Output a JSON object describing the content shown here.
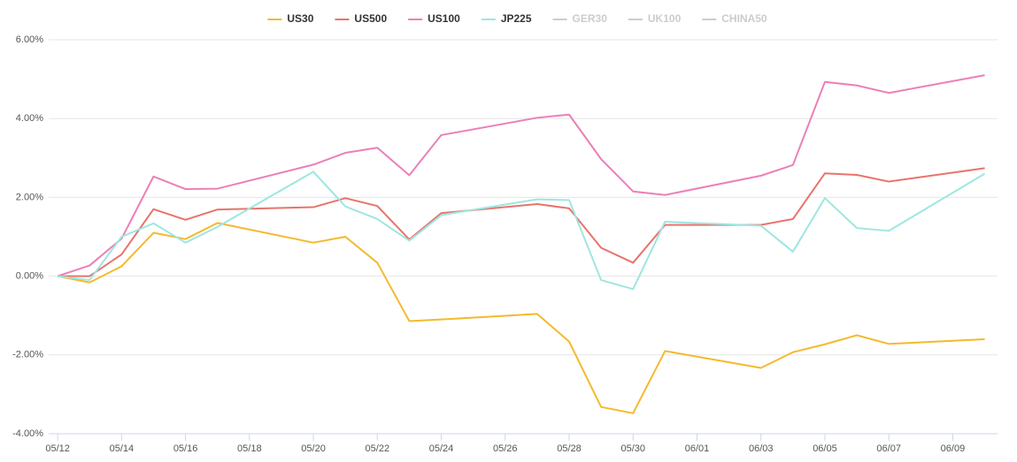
{
  "chart_data": {
    "type": "line",
    "x": [
      0,
      1,
      2,
      3,
      4,
      5,
      8,
      9,
      10,
      11,
      12,
      15,
      16,
      17,
      18,
      19,
      22,
      23,
      24,
      25,
      26,
      29
    ],
    "series": [
      {
        "name": "US30",
        "color": "#f4b92d",
        "values": [
          0,
          -0.16,
          0.25,
          1.1,
          0.94,
          1.35,
          0.85,
          1.0,
          0.34,
          -1.14,
          -1.1,
          -0.96,
          -1.66,
          -3.32,
          -3.48,
          -1.9,
          -2.33,
          -1.93,
          -1.73,
          -1.5,
          -1.72,
          -1.6
        ]
      },
      {
        "name": "US500",
        "color": "#e8736c",
        "values": [
          0,
          0.0,
          0.55,
          1.7,
          1.43,
          1.69,
          1.75,
          1.98,
          1.78,
          0.93,
          1.6,
          1.83,
          1.72,
          0.72,
          0.34,
          1.3,
          1.3,
          1.45,
          2.61,
          2.57,
          2.4,
          2.74
        ]
      },
      {
        "name": "US100",
        "color": "#ec7fb8",
        "values": [
          0,
          0.27,
          0.95,
          2.53,
          2.21,
          2.22,
          2.83,
          3.13,
          3.26,
          2.56,
          3.58,
          4.02,
          4.1,
          2.97,
          2.15,
          2.06,
          2.55,
          2.82,
          4.93,
          4.84,
          4.65,
          5.1
        ]
      },
      {
        "name": "JP225",
        "color": "#9ee6e0",
        "values": [
          0,
          -0.1,
          1.0,
          1.34,
          0.85,
          1.25,
          2.65,
          1.77,
          1.45,
          0.9,
          1.55,
          1.95,
          1.93,
          -0.1,
          -0.33,
          1.38,
          1.28,
          0.62,
          1.98,
          1.22,
          1.15,
          2.6
        ]
      }
    ],
    "legend_hidden": [
      "GER30",
      "UK100",
      "CHINA50"
    ],
    "hidden_color": "#cccccc",
    "xlim": [
      -0.28,
      29.4
    ],
    "xticks": [
      {
        "value": 0,
        "label": "05/12"
      },
      {
        "value": 2,
        "label": "05/14"
      },
      {
        "value": 4,
        "label": "05/16"
      },
      {
        "value": 6,
        "label": "05/18"
      },
      {
        "value": 8,
        "label": "05/20"
      },
      {
        "value": 10,
        "label": "05/22"
      },
      {
        "value": 12,
        "label": "05/24"
      },
      {
        "value": 14,
        "label": "05/26"
      },
      {
        "value": 16,
        "label": "05/28"
      },
      {
        "value": 18,
        "label": "05/30"
      },
      {
        "value": 20,
        "label": "06/01"
      },
      {
        "value": 22,
        "label": "06/03"
      },
      {
        "value": 24,
        "label": "06/05"
      },
      {
        "value": 26,
        "label": "06/07"
      },
      {
        "value": 28,
        "label": "06/09"
      }
    ],
    "ylim": [
      -4,
      6
    ],
    "yticks": [
      {
        "value": -4,
        "label": "-4.00%"
      },
      {
        "value": -2,
        "label": "-2.00%"
      },
      {
        "value": 0,
        "label": "0.00%"
      },
      {
        "value": 2,
        "label": "2.00%"
      },
      {
        "value": 4,
        "label": "4.00%"
      },
      {
        "value": 6,
        "label": "6.00%"
      }
    ],
    "grid": true
  }
}
